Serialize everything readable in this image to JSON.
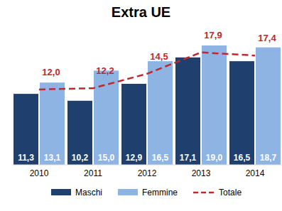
{
  "chart_data": {
    "type": "bar",
    "title": "Extra UE",
    "categories": [
      "2010",
      "2011",
      "2012",
      "2013",
      "2014"
    ],
    "series": [
      {
        "name": "Maschi",
        "type": "bar",
        "color": "#1f3f6e",
        "values": [
          11.3,
          10.2,
          12.9,
          17.1,
          16.5
        ],
        "value_labels": [
          "11,3",
          "10,2",
          "12,9",
          "17,1",
          "16,5"
        ]
      },
      {
        "name": "Femmine",
        "type": "bar",
        "color": "#8db4e3",
        "values": [
          13.1,
          15.0,
          16.5,
          19.0,
          18.7
        ],
        "value_labels": [
          "13,1",
          "15,0",
          "16,5",
          "19,0",
          "18,7"
        ]
      },
      {
        "name": "Totale",
        "type": "line",
        "color": "#c0282d",
        "line_style": "dashed",
        "values": [
          12.0,
          12.2,
          14.5,
          17.9,
          17.4
        ],
        "value_labels": [
          "12,0",
          "12,2",
          "14,5",
          "17,9",
          "17,4"
        ]
      }
    ],
    "ylim": [
      0,
      22
    ],
    "tick_labels": "x",
    "grid": false,
    "legend": "bottom",
    "data_labels": true
  }
}
